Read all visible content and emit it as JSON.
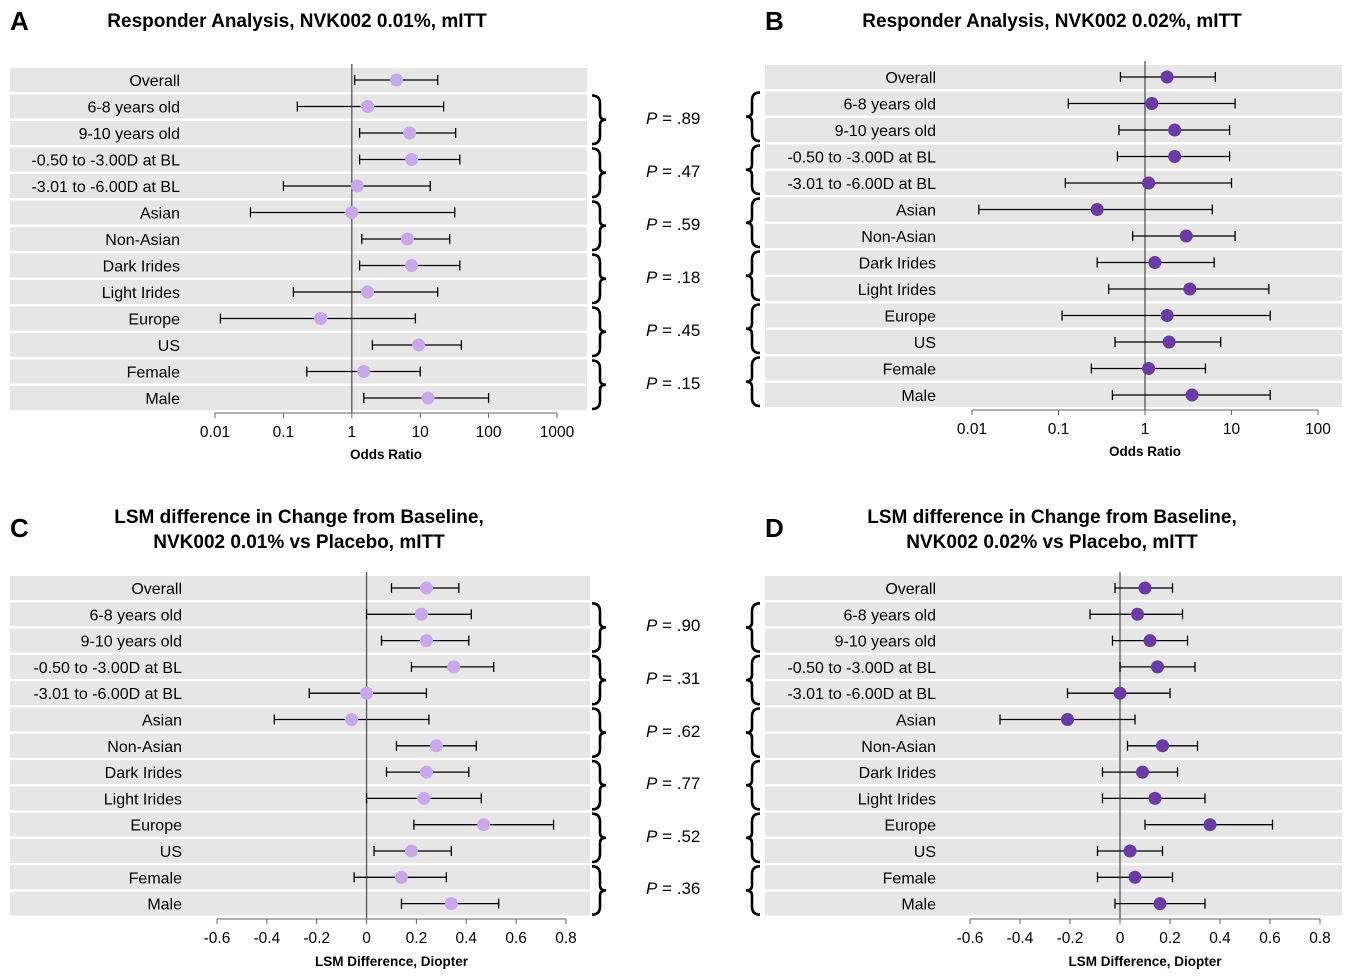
{
  "colors": {
    "light_marker": "#c8a8ea",
    "dark_marker": "#6a3aa5",
    "band": "#e6e6e6",
    "line": "#000000"
  },
  "panels": [
    {
      "letter": "A",
      "title_lines": [
        "Responder Analysis, NVK002 0.01%, mITT"
      ],
      "xlabel": "Odds Ratio",
      "tick_labels": [
        "0.01",
        "0.1",
        "1",
        "10",
        "100",
        "1000"
      ]
    },
    {
      "letter": "B",
      "title_lines": [
        "Responder Analysis, NVK002 0.02%, mITT"
      ],
      "xlabel": "Odds Ratio",
      "tick_labels": [
        "0.01",
        "0.1",
        "1",
        "10",
        "100"
      ]
    },
    {
      "letter": "C",
      "title_lines": [
        "LSM difference in Change from Baseline,",
        "NVK002 0.01% vs Placebo, mITT"
      ],
      "xlabel": "LSM Difference, Diopter",
      "tick_labels": [
        "-0.6",
        "-0.4",
        "-0.2",
        "0",
        "0.2",
        "0.4",
        "0.6",
        "0.8"
      ]
    },
    {
      "letter": "D",
      "title_lines": [
        "LSM difference in Change from Baseline,",
        "NVK002 0.02% vs Placebo, mITT"
      ],
      "xlabel": "LSM Difference, Diopter",
      "tick_labels": [
        "-0.6",
        "-0.4",
        "-0.2",
        "0",
        "0.2",
        "0.4",
        "0.6",
        "0.8"
      ]
    }
  ],
  "pvalues_top": [
    "= .89",
    "= .47",
    "= .59",
    "= .18",
    "= .45",
    "= .15"
  ],
  "pvalues_bottom": [
    "= .90",
    "= .31",
    "= .62",
    "= .77",
    "= .52",
    "= .36"
  ],
  "p_letter": "P",
  "chart_data": [
    {
      "type": "forest",
      "title": "Responder Analysis, NVK002 0.01%, mITT",
      "xlabel": "Odds Ratio",
      "xscale": "log",
      "xlim": [
        0.01,
        1000
      ],
      "reference_line": 1,
      "categories": [
        "Overall",
        "6-8 years old",
        "9-10 years old",
        "-0.50 to -3.00D at BL",
        "-3.01 to -6.00D at BL",
        "Asian",
        "Non-Asian",
        "Dark Irides",
        "Light Irides",
        "Europe",
        "US",
        "Female",
        "Male"
      ],
      "estimate": [
        4.5,
        1.7,
        7,
        7.5,
        1.2,
        1,
        6.5,
        7.5,
        1.7,
        0.35,
        9.5,
        1.5,
        13
      ],
      "ci_low": [
        1.1,
        0.16,
        1.3,
        1.3,
        0.1,
        0.033,
        1.4,
        1.3,
        0.14,
        0.012,
        2,
        0.22,
        1.5
      ],
      "ci_high": [
        18,
        22,
        33,
        38,
        14,
        32,
        27,
        38,
        18,
        8.5,
        40,
        10,
        100
      ]
    },
    {
      "type": "forest",
      "title": "Responder Analysis, NVK002 0.02%, mITT",
      "xlabel": "Odds Ratio",
      "xscale": "log",
      "xlim": [
        0.01,
        100
      ],
      "reference_line": 1,
      "categories": [
        "Overall",
        "6-8 years old",
        "9-10 years old",
        "-0.50 to -3.00D at BL",
        "-3.01 to -6.00D at BL",
        "Asian",
        "Non-Asian",
        "Dark Irides",
        "Light Irides",
        "Europe",
        "US",
        "Female",
        "Male"
      ],
      "estimate": [
        1.8,
        1.2,
        2.2,
        2.2,
        1.1,
        0.28,
        3,
        1.3,
        3.3,
        1.8,
        1.9,
        1.1,
        3.5
      ],
      "ci_low": [
        0.52,
        0.13,
        0.5,
        0.48,
        0.12,
        0.012,
        0.72,
        0.28,
        0.38,
        0.11,
        0.45,
        0.24,
        0.42
      ],
      "ci_high": [
        6.5,
        11,
        9.5,
        9.5,
        10,
        6,
        11,
        6.3,
        27,
        28,
        7.5,
        5,
        28
      ]
    },
    {
      "type": "forest",
      "title": "LSM difference in Change from Baseline, NVK002 0.01% vs Placebo, mITT",
      "xlabel": "LSM Difference, Diopter",
      "xlim": [
        -0.6,
        0.8
      ],
      "reference_line": 0,
      "categories": [
        "Overall",
        "6-8 years old",
        "9-10 years old",
        "-0.50 to -3.00D at BL",
        "-3.01 to -6.00D at BL",
        "Asian",
        "Non-Asian",
        "Dark Irides",
        "Light Irides",
        "Europe",
        "US",
        "Female",
        "Male"
      ],
      "estimate": [
        0.24,
        0.22,
        0.24,
        0.35,
        0.0,
        -0.06,
        0.28,
        0.24,
        0.23,
        0.47,
        0.18,
        0.14,
        0.34
      ],
      "ci_low": [
        0.1,
        0.0,
        0.06,
        0.18,
        -0.23,
        -0.37,
        0.12,
        0.08,
        0.0,
        0.19,
        0.03,
        -0.05,
        0.14
      ],
      "ci_high": [
        0.37,
        0.42,
        0.41,
        0.51,
        0.24,
        0.25,
        0.44,
        0.41,
        0.46,
        0.75,
        0.34,
        0.32,
        0.53
      ]
    },
    {
      "type": "forest",
      "title": "LSM difference in Change from Baseline, NVK002 0.02% vs Placebo, mITT",
      "xlabel": "LSM Difference, Diopter",
      "xlim": [
        -0.6,
        0.8
      ],
      "reference_line": 0,
      "categories": [
        "Overall",
        "6-8 years old",
        "9-10 years old",
        "-0.50 to -3.00D at BL",
        "-3.01 to -6.00D at BL",
        "Asian",
        "Non-Asian",
        "Dark Irides",
        "Light Irides",
        "Europe",
        "US",
        "Female",
        "Male"
      ],
      "estimate": [
        0.1,
        0.07,
        0.12,
        0.15,
        0.0,
        -0.21,
        0.17,
        0.09,
        0.14,
        0.36,
        0.04,
        0.06,
        0.16
      ],
      "ci_low": [
        -0.02,
        -0.12,
        -0.03,
        0.0,
        -0.21,
        -0.48,
        0.03,
        -0.07,
        -0.07,
        0.1,
        -0.09,
        -0.09,
        -0.02
      ],
      "ci_high": [
        0.21,
        0.25,
        0.27,
        0.3,
        0.2,
        0.06,
        0.31,
        0.23,
        0.34,
        0.61,
        0.17,
        0.21,
        0.34
      ]
    }
  ]
}
